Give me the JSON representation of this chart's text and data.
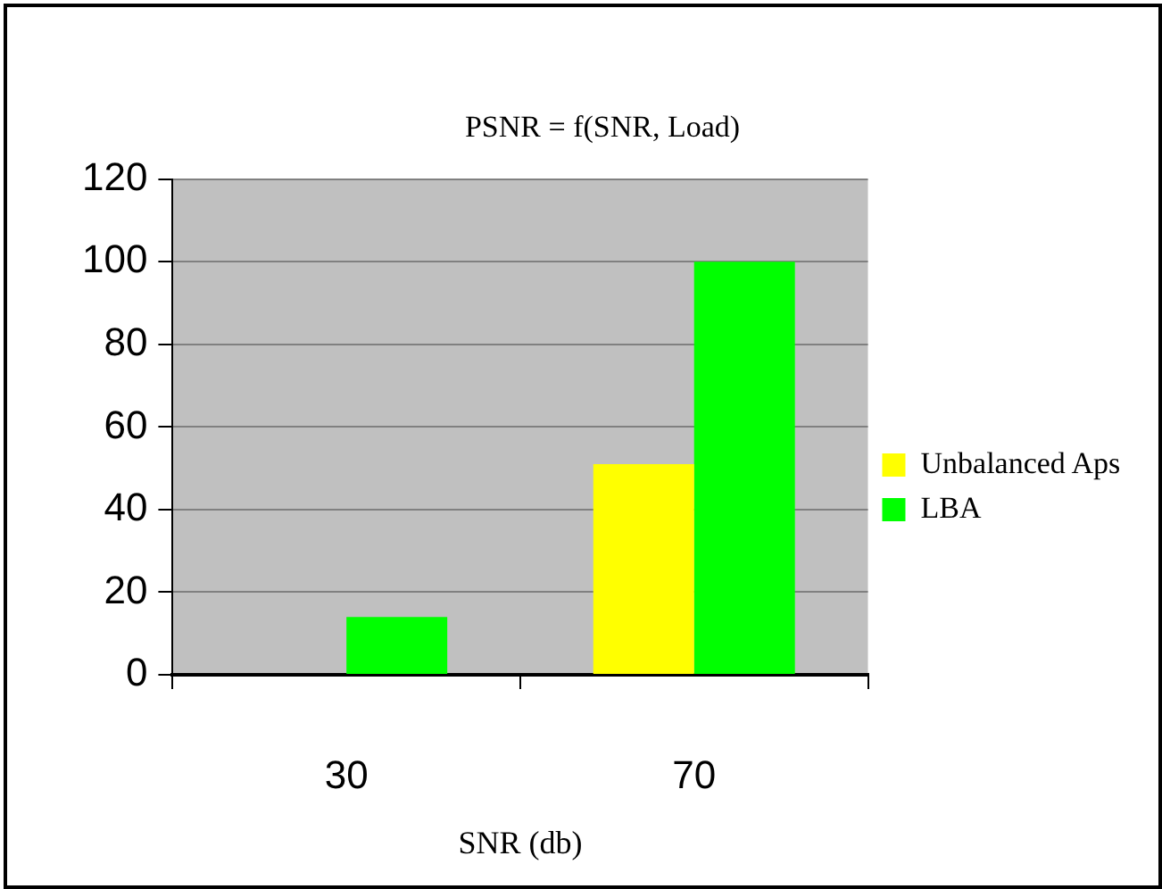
{
  "chart_data": {
    "type": "bar",
    "title": "PSNR = f(SNR, Load)",
    "xlabel": "SNR (db)",
    "categories": [
      "30",
      "70"
    ],
    "series": [
      {
        "name": "Unbalanced Aps",
        "color": "#ffff00",
        "values": [
          null,
          51
        ]
      },
      {
        "name": "LBA",
        "color": "#00ff00",
        "values": [
          14,
          100
        ]
      }
    ],
    "ylim": [
      0,
      120
    ],
    "yticks": [
      0,
      20,
      40,
      60,
      80,
      100,
      120
    ],
    "grid": "y",
    "legend": "right"
  }
}
